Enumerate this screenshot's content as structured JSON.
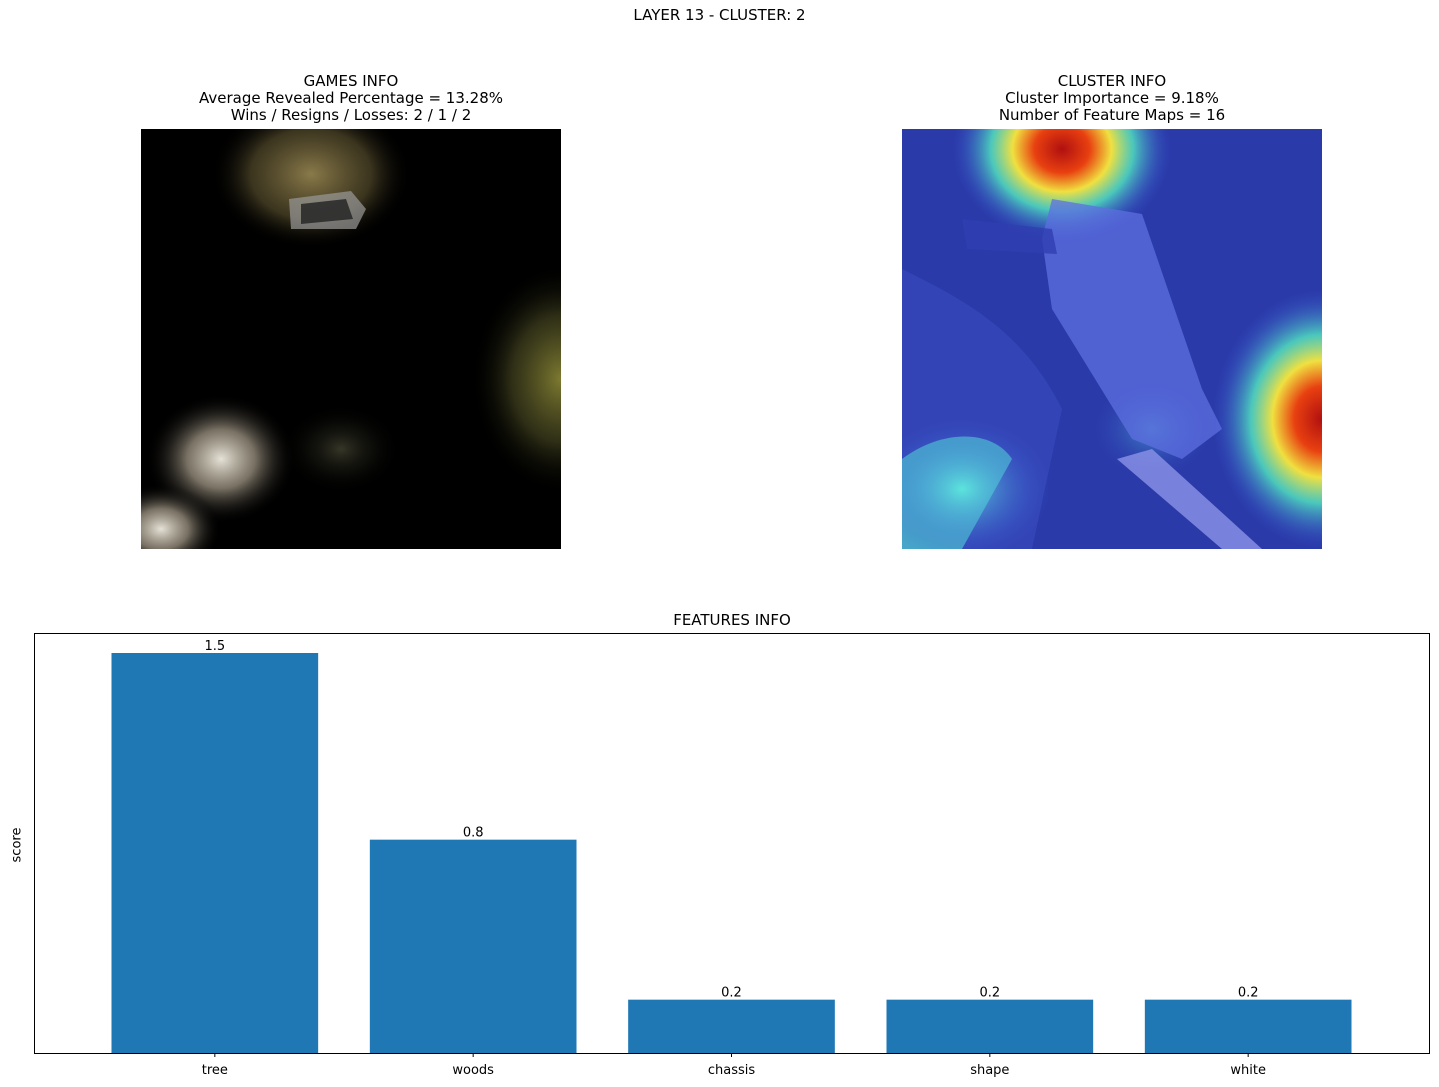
{
  "suptitle": "LAYER 13 - CLUSTER: 2",
  "games_info": {
    "line1": "GAMES INFO",
    "line2": "Average Revealed Percentage = 13.28%",
    "line3": "Wins / Resigns / Losses: 2 / 1 / 2"
  },
  "cluster_info": {
    "line1": "CLUSTER INFO",
    "line2": "Cluster Importance = 9.18%",
    "line3": "Number of Feature Maps = 16"
  },
  "colors": {
    "bar": "#1f77b4"
  },
  "chart_data": {
    "type": "bar",
    "title": "FEATURES INFO",
    "ylabel": "score",
    "xlabel": "",
    "categories": [
      "tree",
      "woods",
      "chassis",
      "shape",
      "white"
    ],
    "values": [
      1.5,
      0.8,
      0.2,
      0.2,
      0.2
    ],
    "value_labels": [
      "1.5",
      "0.8",
      "0.2",
      "0.2",
      "0.2"
    ],
    "ylim": [
      0,
      1.575
    ],
    "grid": false,
    "yticks_visible": false
  }
}
